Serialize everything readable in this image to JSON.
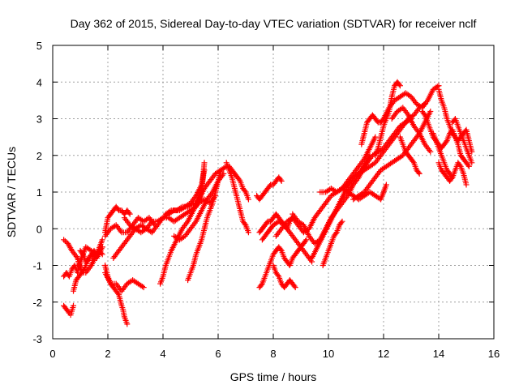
{
  "chart_data": {
    "type": "scatter",
    "title": "Day 362 of 2015, Sidereal Day-to-day VTEC variation (SDTVAR) for receiver nclf",
    "xlabel": "GPS time / hours",
    "ylabel": "SDTVAR / TECUs",
    "xlim": [
      0,
      16
    ],
    "ylim": [
      -3,
      5
    ],
    "xticks": [
      0,
      2,
      4,
      6,
      8,
      10,
      12,
      14,
      16
    ],
    "yticks": [
      -3,
      -2,
      -1,
      0,
      1,
      2,
      3,
      4,
      5
    ],
    "grid": true,
    "marker": "+",
    "color": "#ff0000",
    "series": [
      {
        "x": [
          0.4,
          0.55,
          0.7,
          0.9,
          1.05,
          1.2,
          1.4,
          1.6,
          1.8
        ],
        "y": [
          -0.3,
          -0.4,
          -0.6,
          -0.8,
          -1.2,
          -1.2,
          -1.0,
          -0.7,
          -0.5
        ]
      },
      {
        "x": [
          0.4,
          0.5,
          0.6,
          0.7,
          0.8,
          0.9,
          1.0,
          1.2,
          1.4,
          1.6,
          1.8
        ],
        "y": [
          -1.3,
          -1.2,
          -1.3,
          -1.1,
          -1.0,
          -1.2,
          -0.9,
          -0.5,
          -0.6,
          -0.8,
          -0.5
        ]
      },
      {
        "x": [
          0.4,
          0.5,
          0.6,
          0.65,
          0.75
        ],
        "y": [
          -2.1,
          -2.2,
          -2.3,
          -2.35,
          -2.1
        ]
      },
      {
        "x": [
          0.75,
          0.85,
          0.95,
          1.05,
          1.15,
          1.25,
          1.35,
          1.5,
          1.65,
          1.8
        ],
        "y": [
          -1.7,
          -1.4,
          -1.3,
          -1.2,
          -1.1,
          -0.9,
          -0.8,
          -0.8,
          -0.6,
          -0.3
        ]
      },
      {
        "x": [
          1.0,
          1.1,
          1.2,
          1.3,
          1.4,
          1.5,
          1.6,
          1.7,
          1.8
        ],
        "y": [
          -0.6,
          -0.7,
          -0.9,
          -0.8,
          -0.7,
          -0.6,
          -0.7,
          -0.6,
          -0.7
        ]
      },
      {
        "x": [
          1.9,
          2.0,
          2.1,
          2.2,
          2.3,
          2.4,
          2.5,
          2.55,
          2.6,
          2.7
        ],
        "y": [
          -1.0,
          -1.3,
          -1.5,
          -1.6,
          -1.7,
          -1.8,
          -2.1,
          -2.2,
          -2.4,
          -2.6
        ]
      },
      {
        "x": [
          1.9,
          2.1,
          2.3,
          2.5,
          2.7,
          2.9,
          3.1,
          3.3
        ],
        "y": [
          -1.2,
          -1.5,
          -1.5,
          -1.7,
          -1.5,
          -1.4,
          -1.5,
          -1.6
        ]
      },
      {
        "x": [
          1.9,
          2.0,
          2.1,
          2.2,
          2.3,
          2.4,
          2.5,
          2.6,
          2.7,
          2.8
        ],
        "y": [
          -0.1,
          0.3,
          0.4,
          0.5,
          0.6,
          0.5,
          0.5,
          0.4,
          0.5,
          0.4
        ]
      },
      {
        "x": [
          1.9,
          2.1,
          2.3,
          2.5,
          2.7,
          2.9,
          3.1,
          3.3,
          3.5,
          3.7
        ],
        "y": [
          -0.2,
          0.0,
          0.1,
          -0.1,
          -0.1,
          0.1,
          0.3,
          0.2,
          0.3,
          0.1
        ]
      },
      {
        "x": [
          2.2,
          2.4,
          2.6,
          2.8,
          3.0,
          3.2,
          3.4,
          3.6,
          3.8,
          4.0,
          4.2,
          4.4,
          4.6,
          4.8,
          5.0,
          5.2,
          5.4,
          5.5
        ],
        "y": [
          -0.8,
          -0.6,
          -0.4,
          -0.2,
          0.0,
          0.1,
          0.0,
          -0.1,
          0.1,
          0.3,
          0.4,
          0.5,
          0.5,
          0.6,
          0.7,
          0.9,
          1.2,
          1.6
        ]
      },
      {
        "x": [
          2.6,
          2.8,
          3.0,
          3.2,
          3.4,
          3.6,
          3.8,
          4.0,
          4.2,
          4.4,
          4.6,
          4.8,
          5.0,
          5.2,
          5.4,
          5.5
        ],
        "y": [
          0.3,
          0.1,
          0.0,
          -0.1,
          0.0,
          0.2,
          0.2,
          0.3,
          0.3,
          0.2,
          0.3,
          0.4,
          0.5,
          0.6,
          1.0,
          1.8
        ]
      },
      {
        "x": [
          3.9,
          4.0,
          4.1,
          4.2,
          4.3,
          4.5,
          4.7,
          4.9,
          5.1,
          5.3,
          5.5,
          5.7,
          5.9,
          6.1,
          6.3
        ],
        "y": [
          -1.5,
          -1.3,
          -1.0,
          -0.8,
          -0.6,
          -0.3,
          0.0,
          0.2,
          0.5,
          0.8,
          1.1,
          1.3,
          1.5,
          1.6,
          1.7
        ]
      },
      {
        "x": [
          4.4,
          4.6,
          4.8,
          5.0,
          5.2,
          5.4,
          5.6,
          5.8,
          6.0,
          6.2
        ],
        "y": [
          -0.2,
          -0.3,
          -0.2,
          0.0,
          0.2,
          0.5,
          0.8,
          1.0,
          1.3,
          1.5
        ]
      },
      {
        "x": [
          4.9,
          5.0,
          5.1,
          5.2,
          5.3,
          5.4,
          5.5,
          5.6,
          5.7,
          5.8,
          5.9,
          6.0,
          6.1
        ],
        "y": [
          -1.4,
          -1.2,
          -1.0,
          -0.7,
          -0.5,
          -0.3,
          0.0,
          0.3,
          0.5,
          0.7,
          1.0,
          1.3,
          1.6
        ]
      },
      {
        "x": [
          4.1,
          4.3,
          4.5,
          4.7,
          4.9,
          5.1,
          5.3,
          5.5,
          5.7,
          5.9
        ],
        "y": [
          0.4,
          0.5,
          0.5,
          0.6,
          0.6,
          0.7,
          0.7,
          0.8,
          0.7,
          0.9
        ]
      },
      {
        "x": [
          6.3,
          6.4,
          6.5,
          6.6,
          6.7,
          6.8,
          6.9,
          7.0,
          7.1
        ],
        "y": [
          1.8,
          1.6,
          1.4,
          1.1,
          0.8,
          0.5,
          0.2,
          0.1,
          -0.1
        ]
      },
      {
        "x": [
          6.4,
          6.5,
          6.6,
          6.7,
          6.8,
          6.9,
          7.0,
          7.1
        ],
        "y": [
          1.7,
          1.6,
          1.5,
          1.4,
          1.3,
          1.1,
          1.0,
          0.8
        ]
      },
      {
        "x": [
          7.4,
          7.5,
          7.6,
          7.7,
          7.8,
          7.9,
          8.0,
          8.1,
          8.2,
          8.3
        ],
        "y": [
          0.9,
          0.8,
          0.9,
          1.0,
          1.1,
          1.2,
          1.2,
          1.3,
          1.4,
          1.3
        ]
      },
      {
        "x": [
          7.5,
          7.6,
          7.7,
          7.8,
          7.9,
          8.0,
          8.1,
          8.2,
          8.3,
          8.4,
          8.5,
          8.6,
          8.7,
          8.8,
          8.9,
          9.0,
          9.1,
          9.2
        ],
        "y": [
          -1.6,
          -1.5,
          -1.3,
          -1.1,
          -0.9,
          -0.7,
          -0.6,
          -0.5,
          -0.6,
          -0.8,
          -0.9,
          -1.0,
          -0.8,
          -0.7,
          -0.6,
          -0.5,
          -0.4,
          -0.3
        ]
      },
      {
        "x": [
          7.5,
          7.6,
          7.7,
          7.8,
          7.9,
          8.0,
          8.1,
          8.2,
          8.3,
          8.4,
          8.5,
          8.6,
          8.7
        ],
        "y": [
          -0.1,
          0.0,
          0.1,
          0.2,
          0.2,
          0.3,
          0.4,
          0.3,
          0.2,
          0.1,
          0.0,
          0.2,
          0.3
        ]
      },
      {
        "x": [
          7.6,
          7.7,
          7.8,
          7.9,
          8.0,
          8.2,
          8.4,
          8.6,
          8.8,
          9.0,
          9.2,
          9.4
        ],
        "y": [
          -0.3,
          -0.2,
          -0.1,
          0.0,
          0.1,
          0.2,
          0.1,
          -0.1,
          -0.3,
          -0.5,
          -0.7,
          -0.9
        ]
      },
      {
        "x": [
          8.0,
          8.1,
          8.2,
          8.3,
          8.4,
          8.5,
          8.6,
          8.7,
          8.8
        ],
        "y": [
          -1.0,
          -1.2,
          -1.3,
          -1.5,
          -1.6,
          -1.5,
          -1.4,
          -1.5,
          -1.6
        ]
      },
      {
        "x": [
          8.1,
          8.3,
          8.5,
          8.7,
          8.9,
          9.1,
          9.3,
          9.5,
          9.7,
          9.9,
          10.1,
          10.3,
          10.5,
          10.7,
          10.9,
          11.1,
          11.3,
          11.5,
          11.7
        ],
        "y": [
          -0.2,
          0.0,
          0.2,
          0.3,
          0.1,
          -0.1,
          0.0,
          0.3,
          0.5,
          0.7,
          0.9,
          1.0,
          1.1,
          1.3,
          1.5,
          1.7,
          1.9,
          2.2,
          2.5
        ]
      },
      {
        "x": [
          8.7,
          8.9,
          9.1,
          9.3,
          9.5,
          9.7,
          9.9,
          10.1,
          10.3,
          10.5,
          10.7,
          10.9,
          11.1,
          11.3,
          11.5
        ],
        "y": [
          0.4,
          0.2,
          0.1,
          -0.2,
          -0.4,
          -0.3,
          0.0,
          0.3,
          0.5,
          0.7,
          0.9,
          1.2,
          1.4,
          1.7,
          2.0
        ]
      },
      {
        "x": [
          9.4,
          9.6,
          9.8,
          10.0,
          10.2,
          10.4,
          10.6,
          10.8,
          11.0,
          11.2,
          11.4,
          11.6,
          11.8,
          12.0,
          12.2,
          12.4,
          12.6,
          12.8,
          13.0
        ],
        "y": [
          -0.8,
          -0.5,
          -0.2,
          0.1,
          0.4,
          0.7,
          1.0,
          1.2,
          1.4,
          1.6,
          1.8,
          2.0,
          2.1,
          2.2,
          2.4,
          2.6,
          2.8,
          2.9,
          3.0
        ]
      },
      {
        "x": [
          9.8,
          9.9,
          10.0,
          10.1,
          10.2,
          10.3,
          10.4,
          10.5
        ],
        "y": [
          -1.0,
          -0.8,
          -0.6,
          -0.4,
          -0.2,
          -0.1,
          0.1,
          0.2
        ]
      },
      {
        "x": [
          9.7,
          9.9,
          10.1,
          10.3,
          10.5,
          10.7,
          10.9,
          11.1,
          11.3,
          11.5,
          11.7,
          11.9,
          12.1,
          12.3,
          12.5,
          12.7,
          12.9,
          13.1,
          13.3,
          13.5
        ],
        "y": [
          1.0,
          1.0,
          1.1,
          1.0,
          1.1,
          1.2,
          1.4,
          1.5,
          1.6,
          1.7,
          1.8,
          2.0,
          2.2,
          2.4,
          2.6,
          2.8,
          3.0,
          3.1,
          3.3,
          3.4
        ]
      },
      {
        "x": [
          10.3,
          10.5,
          10.7,
          10.9,
          11.1,
          11.3,
          11.5,
          11.7,
          11.9,
          12.1
        ],
        "y": [
          1.0,
          1.1,
          1.0,
          0.9,
          0.8,
          0.9,
          1.0,
          0.9,
          0.8,
          1.2
        ]
      },
      {
        "x": [
          10.9,
          11.1,
          11.3,
          11.5,
          11.7,
          11.9,
          12.1,
          12.3,
          12.5,
          12.7,
          12.9,
          13.1,
          13.3,
          13.5,
          13.7
        ],
        "y": [
          0.8,
          0.9,
          1.0,
          1.2,
          1.4,
          1.6,
          1.7,
          1.8,
          1.9,
          2.0,
          2.2,
          2.4,
          2.6,
          2.9,
          3.2
        ]
      },
      {
        "x": [
          11.2,
          11.3,
          11.4,
          11.5,
          11.6,
          11.7,
          11.8,
          11.9,
          12.0,
          12.2,
          12.4,
          12.6,
          12.8,
          13.0,
          13.2,
          13.4,
          13.6,
          13.8,
          14.0
        ],
        "y": [
          2.3,
          2.6,
          2.9,
          3.0,
          3.1,
          3.0,
          2.9,
          2.9,
          3.0,
          3.3,
          3.5,
          3.6,
          3.7,
          3.6,
          3.4,
          3.3,
          3.5,
          3.8,
          3.9
        ]
      },
      {
        "x": [
          11.7,
          11.8,
          11.9,
          12.0,
          12.1,
          12.2,
          12.3,
          12.4,
          12.5,
          12.6
        ],
        "y": [
          2.0,
          2.2,
          2.5,
          2.8,
          3.0,
          3.2,
          3.6,
          3.9,
          4.0,
          3.9
        ]
      },
      {
        "x": [
          12.3,
          12.5,
          12.7,
          12.9,
          13.1,
          13.3,
          13.5,
          13.7
        ],
        "y": [
          3.0,
          3.2,
          3.3,
          3.1,
          2.8,
          2.6,
          2.3,
          2.1
        ]
      },
      {
        "x": [
          12.6,
          12.7,
          12.8,
          12.9,
          13.0,
          13.1,
          13.2,
          13.3
        ],
        "y": [
          2.5,
          2.3,
          2.1,
          2.0,
          1.9,
          1.8,
          1.6,
          1.5
        ]
      },
      {
        "x": [
          13.4,
          13.5,
          13.6,
          13.7,
          13.8,
          13.9,
          14.0,
          14.1,
          14.2,
          14.3,
          14.4,
          14.5
        ],
        "y": [
          3.2,
          3.1,
          2.9,
          2.7,
          2.5,
          2.4,
          2.2,
          2.0,
          1.8,
          1.6,
          1.5,
          1.4
        ]
      },
      {
        "x": [
          13.8,
          13.9,
          14.0,
          14.1,
          14.2,
          14.3,
          14.4,
          14.5,
          14.6,
          14.7,
          14.8,
          14.9,
          15.0,
          15.1
        ],
        "y": [
          2.6,
          2.4,
          2.3,
          2.2,
          2.3,
          2.4,
          2.6,
          2.7,
          2.5,
          2.3,
          2.0,
          1.9,
          1.8,
          1.7
        ]
      },
      {
        "x": [
          14.0,
          14.1,
          14.2,
          14.3,
          14.4,
          14.5,
          14.6,
          14.7,
          14.8,
          14.9,
          15.0
        ],
        "y": [
          1.8,
          1.6,
          1.5,
          1.4,
          1.3,
          1.4,
          1.6,
          1.8,
          1.7,
          1.5,
          1.2
        ]
      },
      {
        "x": [
          14.0,
          14.1,
          14.2,
          14.3,
          14.4,
          14.5,
          14.6,
          14.7,
          14.8,
          14.9,
          15.0,
          15.1,
          15.2
        ],
        "y": [
          3.8,
          3.5,
          3.3,
          3.0,
          2.8,
          2.6,
          2.5,
          2.4,
          2.5,
          2.6,
          2.7,
          2.4,
          2.1
        ]
      },
      {
        "x": [
          14.5,
          14.6,
          14.7,
          14.8,
          14.9,
          15.0,
          15.1,
          15.2
        ],
        "y": [
          2.9,
          3.0,
          2.8,
          2.6,
          2.4,
          2.2,
          2.0,
          1.8
        ]
      }
    ]
  }
}
